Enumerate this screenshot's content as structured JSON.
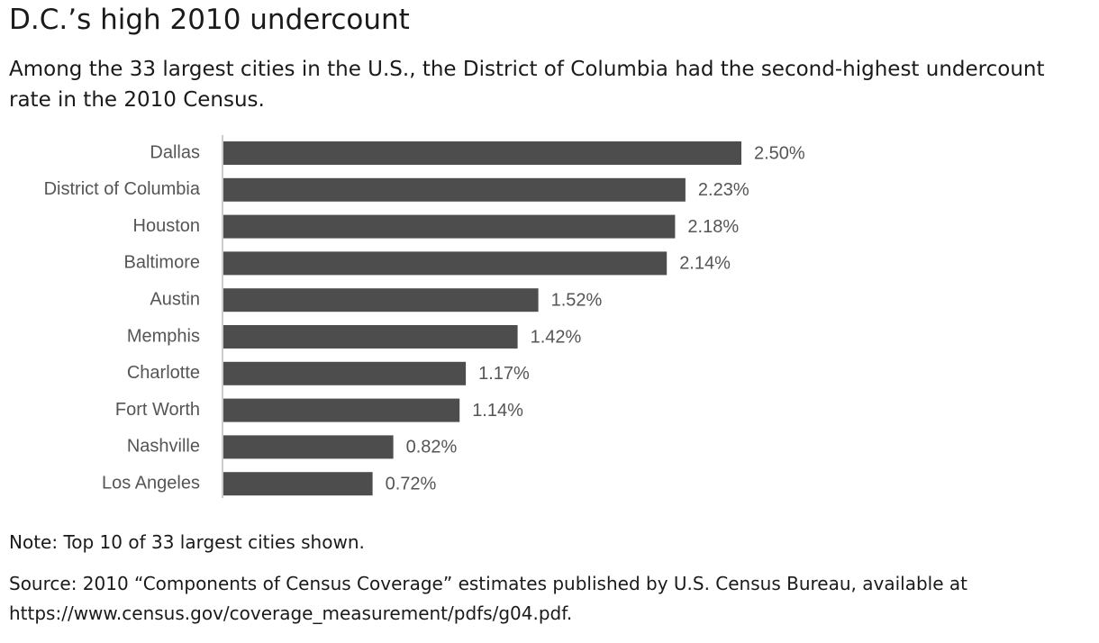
{
  "chart_data": {
    "type": "bar",
    "orientation": "horizontal",
    "title": "D.C.’s high 2010 undercount",
    "subtitle": "Among the 33 largest cities in the U.S., the District of Columbia had the second-highest undercount rate in the 2010 Census.",
    "categories": [
      "Dallas",
      "District of Columbia",
      "Houston",
      "Baltimore",
      "Austin",
      "Memphis",
      "Charlotte",
      "Fort Worth",
      "Nashville",
      "Los Angeles"
    ],
    "values": [
      2.5,
      2.23,
      2.18,
      2.14,
      1.52,
      1.42,
      1.17,
      1.14,
      0.82,
      0.72
    ],
    "value_labels": [
      "2.50%",
      "2.23%",
      "2.18%",
      "2.14%",
      "1.52%",
      "1.42%",
      "1.17%",
      "1.14%",
      "0.82%",
      "0.72%"
    ],
    "color": "#4d4d4d",
    "note": "Note: Top 10 of 33 largest cities shown.",
    "source": "Source: 2010 “Components of Census Coverage” estimates published by U.S. Census Bureau, available at https://www.census.gov/coverage_measurement/pdfs/g04.pdf."
  }
}
